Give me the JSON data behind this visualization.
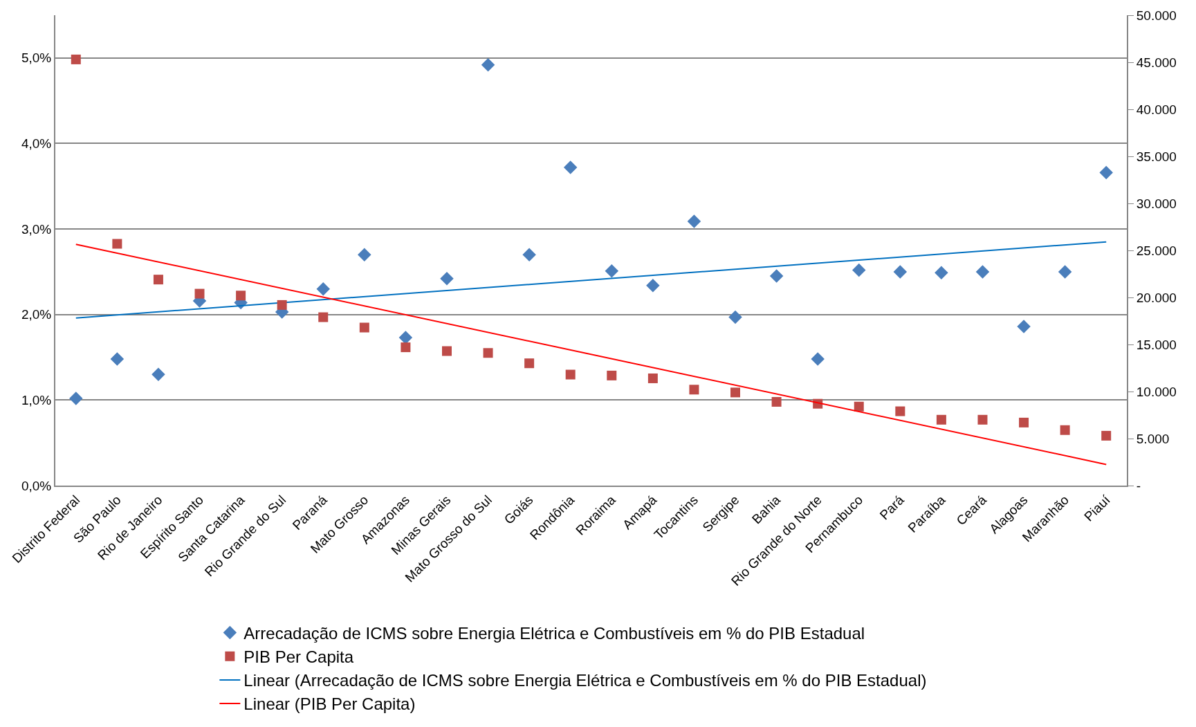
{
  "chart_data": {
    "type": "scatter",
    "categories": [
      "Distrito Federal",
      "São Paulo",
      "Rio de Janeiro",
      "Espírito Santo",
      "Santa Catarina",
      "Rio Grande do Sul",
      "Paraná",
      "Mato Grosso",
      "Amazonas",
      "Minas Gerais",
      "Mato Grosso do Sul",
      "Goiás",
      "Rondônia",
      "Roraima",
      "Amapá",
      "Tocantins",
      "Sergipe",
      "Bahia",
      "Rio Grande do Norte",
      "Pernambuco",
      "Pará",
      "Paraíba",
      "Ceará",
      "Alagoas",
      "Maranhão",
      "Piauí"
    ],
    "series": [
      {
        "name": "Arrecadação de ICMS sobre Energia Elétrica e Combustíveis em % do PIB Estadual",
        "marker": "diamond",
        "color": "#4a7ebb",
        "values": [
          1.02,
          1.48,
          1.3,
          2.16,
          2.14,
          2.03,
          2.3,
          2.7,
          1.73,
          2.42,
          4.92,
          2.7,
          3.72,
          2.51,
          2.34,
          3.09,
          1.97,
          2.45,
          1.48,
          2.52,
          2.5,
          2.49,
          2.5,
          1.86,
          2.5,
          3.66
        ]
      },
      {
        "name": "PIB Per Capita",
        "marker": "square",
        "color": "#be4b48",
        "axis": "y2",
        "values": [
          45300,
          25700,
          21900,
          20400,
          20200,
          19200,
          17900,
          16800,
          14700,
          14300,
          14100,
          13000,
          11800,
          11700,
          11400,
          10200,
          9900,
          8900,
          8700,
          8400,
          7900,
          7000,
          7000,
          6700,
          5900,
          5300
        ]
      },
      {
        "name": "Linear (Arrecadação de ICMS sobre Energia Elétrica e Combustíveis em % do PIB Estadual)",
        "type": "line",
        "marker": "none",
        "color": "#0070c0",
        "x": [
          "Distrito Federal",
          "Piauí"
        ],
        "values": [
          1.96,
          2.85
        ]
      },
      {
        "name": "Linear (PIB Per Capita)",
        "type": "line",
        "marker": "none",
        "color": "#ff0000",
        "axis": "y2",
        "x": [
          "Distrito Federal",
          "Piauí"
        ],
        "values": [
          25650,
          2250
        ]
      }
    ],
    "ylim": [
      0,
      5.5
    ],
    "yticks": [
      {
        "value": 0,
        "label": "0,0%"
      },
      {
        "value": 1,
        "label": "1,0%"
      },
      {
        "value": 2,
        "label": "2,0%"
      },
      {
        "value": 3,
        "label": "3,0%"
      },
      {
        "value": 4,
        "label": "4,0%"
      },
      {
        "value": 5,
        "label": "5,0%"
      }
    ],
    "y2lim": [
      0,
      50000
    ],
    "y2ticks": [
      {
        "value": 0,
        "label": "-"
      },
      {
        "value": 5000,
        "label": "5.000"
      },
      {
        "value": 10000,
        "label": "10.000"
      },
      {
        "value": 15000,
        "label": "15.000"
      },
      {
        "value": 20000,
        "label": "20.000"
      },
      {
        "value": 25000,
        "label": "25.000"
      },
      {
        "value": 30000,
        "label": "30.000"
      },
      {
        "value": 35000,
        "label": "35.000"
      },
      {
        "value": 40000,
        "label": "40.000"
      },
      {
        "value": 45000,
        "label": "45.000"
      },
      {
        "value": 50000,
        "label": "50.000"
      }
    ],
    "grid": "y",
    "legend": "bottom"
  }
}
